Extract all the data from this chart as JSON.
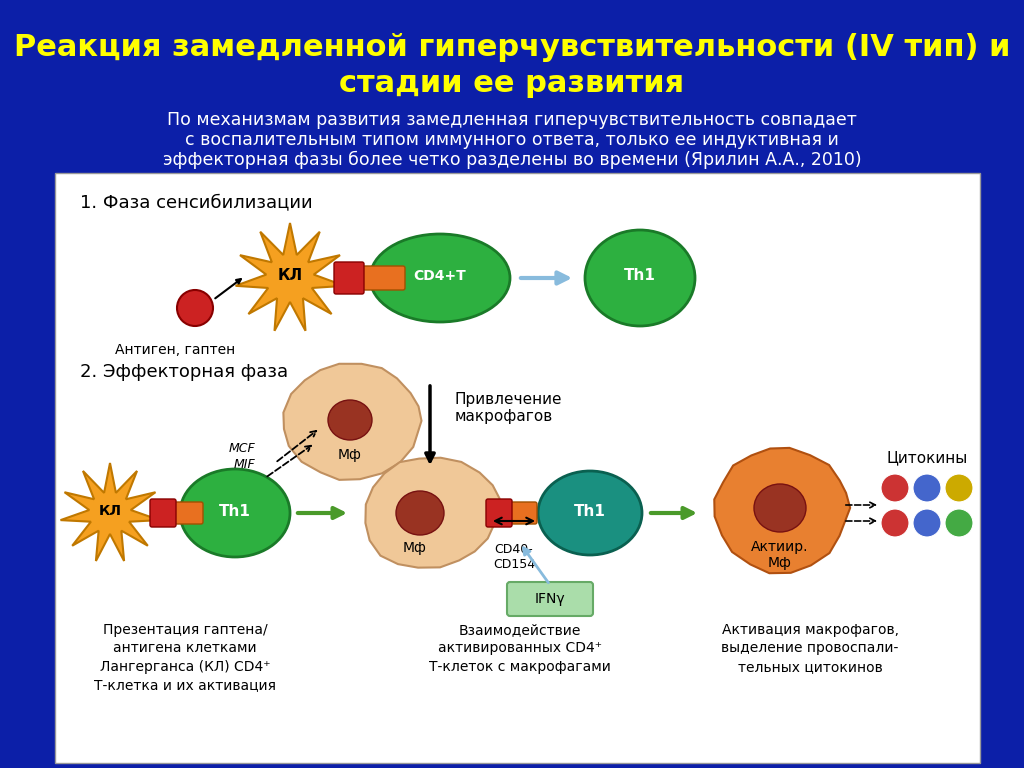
{
  "title_line1": "Реакция замедленной гиперчувствительности (IV тип) и",
  "title_line2": "стадии ее развития",
  "subtitle_line1": "По механизмам развития замедленная гиперчувствительность совпадает",
  "subtitle_line2": "с воспалительным типом иммунного ответа, только ее индуктивная и",
  "subtitle_line3": "эффекторная фазы более четко разделены во времени (Ярилин А.А., 2010)",
  "bg_color": "#0c1fa8",
  "panel_bg": "#ffffff",
  "title_color": "#ffff00",
  "subtitle_color": "#ffffff",
  "phase1_label": "1. Фаза сенсибилизации",
  "phase2_label": "2. Эффекторная фаза",
  "antigen_label": "Антиген, гаптен",
  "caption1": "Презентация гаптена/\nантигена клетками\nЛангерганса (КЛ) CD4⁺\nТ-клетка и их активация",
  "caption2": "Взаимодействие\nактивированных CD4⁺\nТ-клеток с макрофагами",
  "caption3": "Активация макрофагов,\nвыделение провоспали-\nтельных цитокинов",
  "cytokines_label": "Цитокины",
  "attraction_label": "Привлечение\nмакрофагов",
  "mcf_label": "MCF",
  "mif_label": "MIF",
  "cd40_label": "CD40-\nCD154",
  "ifn_label": "IFNγ",
  "colors": {
    "star_orange": "#f5a020",
    "star_edge": "#c07800",
    "green_oval": "#2db040",
    "green_oval_edge": "#1a7a28",
    "teal_oval": "#1a9080",
    "teal_oval_edge": "#0a6050",
    "receptor_red": "#cc2222",
    "receptor_red_edge": "#880000",
    "macrophage_peach": "#f0c898",
    "macrophage_peach_edge": "#c09060",
    "macrophage_orange": "#e88030",
    "macrophage_orange_edge": "#b05010",
    "macrophage_nucleus": "#993322",
    "cytokine_red": "#cc3333",
    "cytokine_blue": "#4466cc",
    "cytokine_green": "#44aa44",
    "cytokine_yellow": "#ccaa00",
    "arrow_blue_light": "#88bbdd",
    "arrow_green": "#4a9a2a",
    "ifn_box_bg": "#aaddaa",
    "ifn_box_edge": "#66aa66"
  }
}
